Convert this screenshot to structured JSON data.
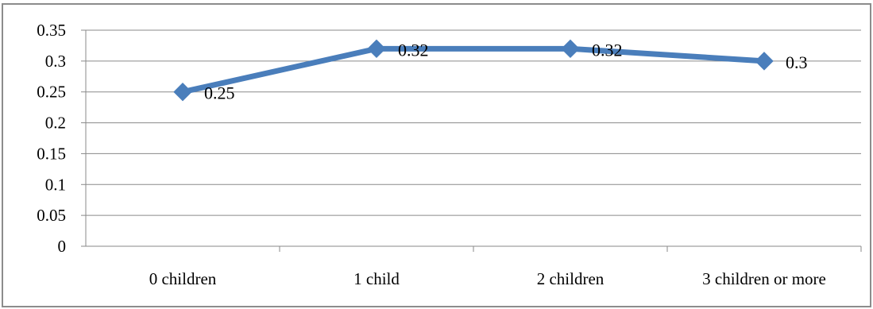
{
  "chart_data": {
    "type": "line",
    "categories": [
      "0 children",
      "1 child",
      "2 children",
      "3 children or more"
    ],
    "series": [
      {
        "values": [
          0.25,
          0.32,
          0.32,
          0.3
        ],
        "color": "#4a7ebb"
      }
    ],
    "data_labels": [
      "0.25",
      "0.32",
      "0.32",
      "0.3"
    ],
    "y_ticks": [
      "0",
      "0.05",
      "0.1",
      "0.15",
      "0.2",
      "0.25",
      "0.3",
      "0.35"
    ],
    "ylim": [
      0,
      0.35
    ],
    "grid": true,
    "legend": "none",
    "marker": "diamond"
  }
}
